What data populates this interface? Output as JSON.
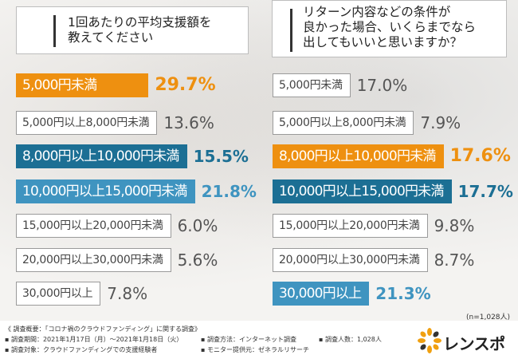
{
  "left_panel": {
    "title": "1回あたりの平均支援額を\n教えてください"
  },
  "right_panel": {
    "title": "リターン内容などの条件が\n良かった場合、いくらまでなら\n出してもいいと思いますか？"
  },
  "colors": {
    "orange": "#ee9010",
    "blue": "#1c6f94",
    "lightblue": "#3f94c0",
    "gray": "#9a9a9a"
  },
  "chart_data": [
    {
      "type": "bar",
      "orientation": "horizontal",
      "title": "1回あたりの平均支援額を教えてください",
      "unit": "%",
      "categories": [
        "5,000円未満",
        "5,000円以上8,000円未満",
        "8,000円以上10,000円未満",
        "10,000円以上15,000円未満",
        "15,000円以上20,000円未満",
        "20,000円以上30,000円未満",
        "30,000円以上"
      ],
      "values": [
        29.7,
        13.6,
        15.5,
        21.8,
        6.0,
        5.6,
        7.8
      ],
      "value_labels": [
        "29.7%",
        "13.6%",
        "15.5%",
        "21.8%",
        "6.0%",
        "5.6%",
        "7.8%"
      ],
      "styles": [
        "orange",
        "gray",
        "blue",
        "lightblue",
        "gray",
        "gray",
        "gray"
      ]
    },
    {
      "type": "bar",
      "orientation": "horizontal",
      "title": "リターン内容などの条件が良かった場合、いくらまでなら出してもいいと思いますか？",
      "unit": "%",
      "categories": [
        "5,000円未満",
        "5,000円以上8,000円未満",
        "8,000円以上10,000円未満",
        "10,000円以上15,000円未満",
        "15,000円以上20,000円未満",
        "20,000円以上30,000円未満",
        "30,000円以上"
      ],
      "values": [
        17.0,
        7.9,
        17.6,
        17.7,
        9.8,
        8.7,
        21.3
      ],
      "value_labels": [
        "17.0%",
        "7.9%",
        "17.6%",
        "17.7%",
        "9.8%",
        "8.7%",
        "21.3%"
      ],
      "styles": [
        "gray",
        "gray",
        "orange",
        "blue",
        "gray",
        "gray",
        "lightblue"
      ]
    }
  ],
  "n_note": "(n=1,028人)",
  "footer": {
    "overview": "《 調査概要：「コロナ禍のクラウドファンディング」に関する調査》",
    "period": "▪ 調査期間：2021年1月17日（月）〜2021年1月18日（火）",
    "target": "▪ 調査対象：クラウドファンディングでの支援経験者",
    "method": "▪ 調査方法：インターネット調査",
    "provider": "▪ モニター提供元：ゼネラルリサーチ",
    "people": "▪ 調査人数：1,028人"
  },
  "logo": {
    "text": "レンスポ",
    "icon": "sparkle-icon"
  }
}
